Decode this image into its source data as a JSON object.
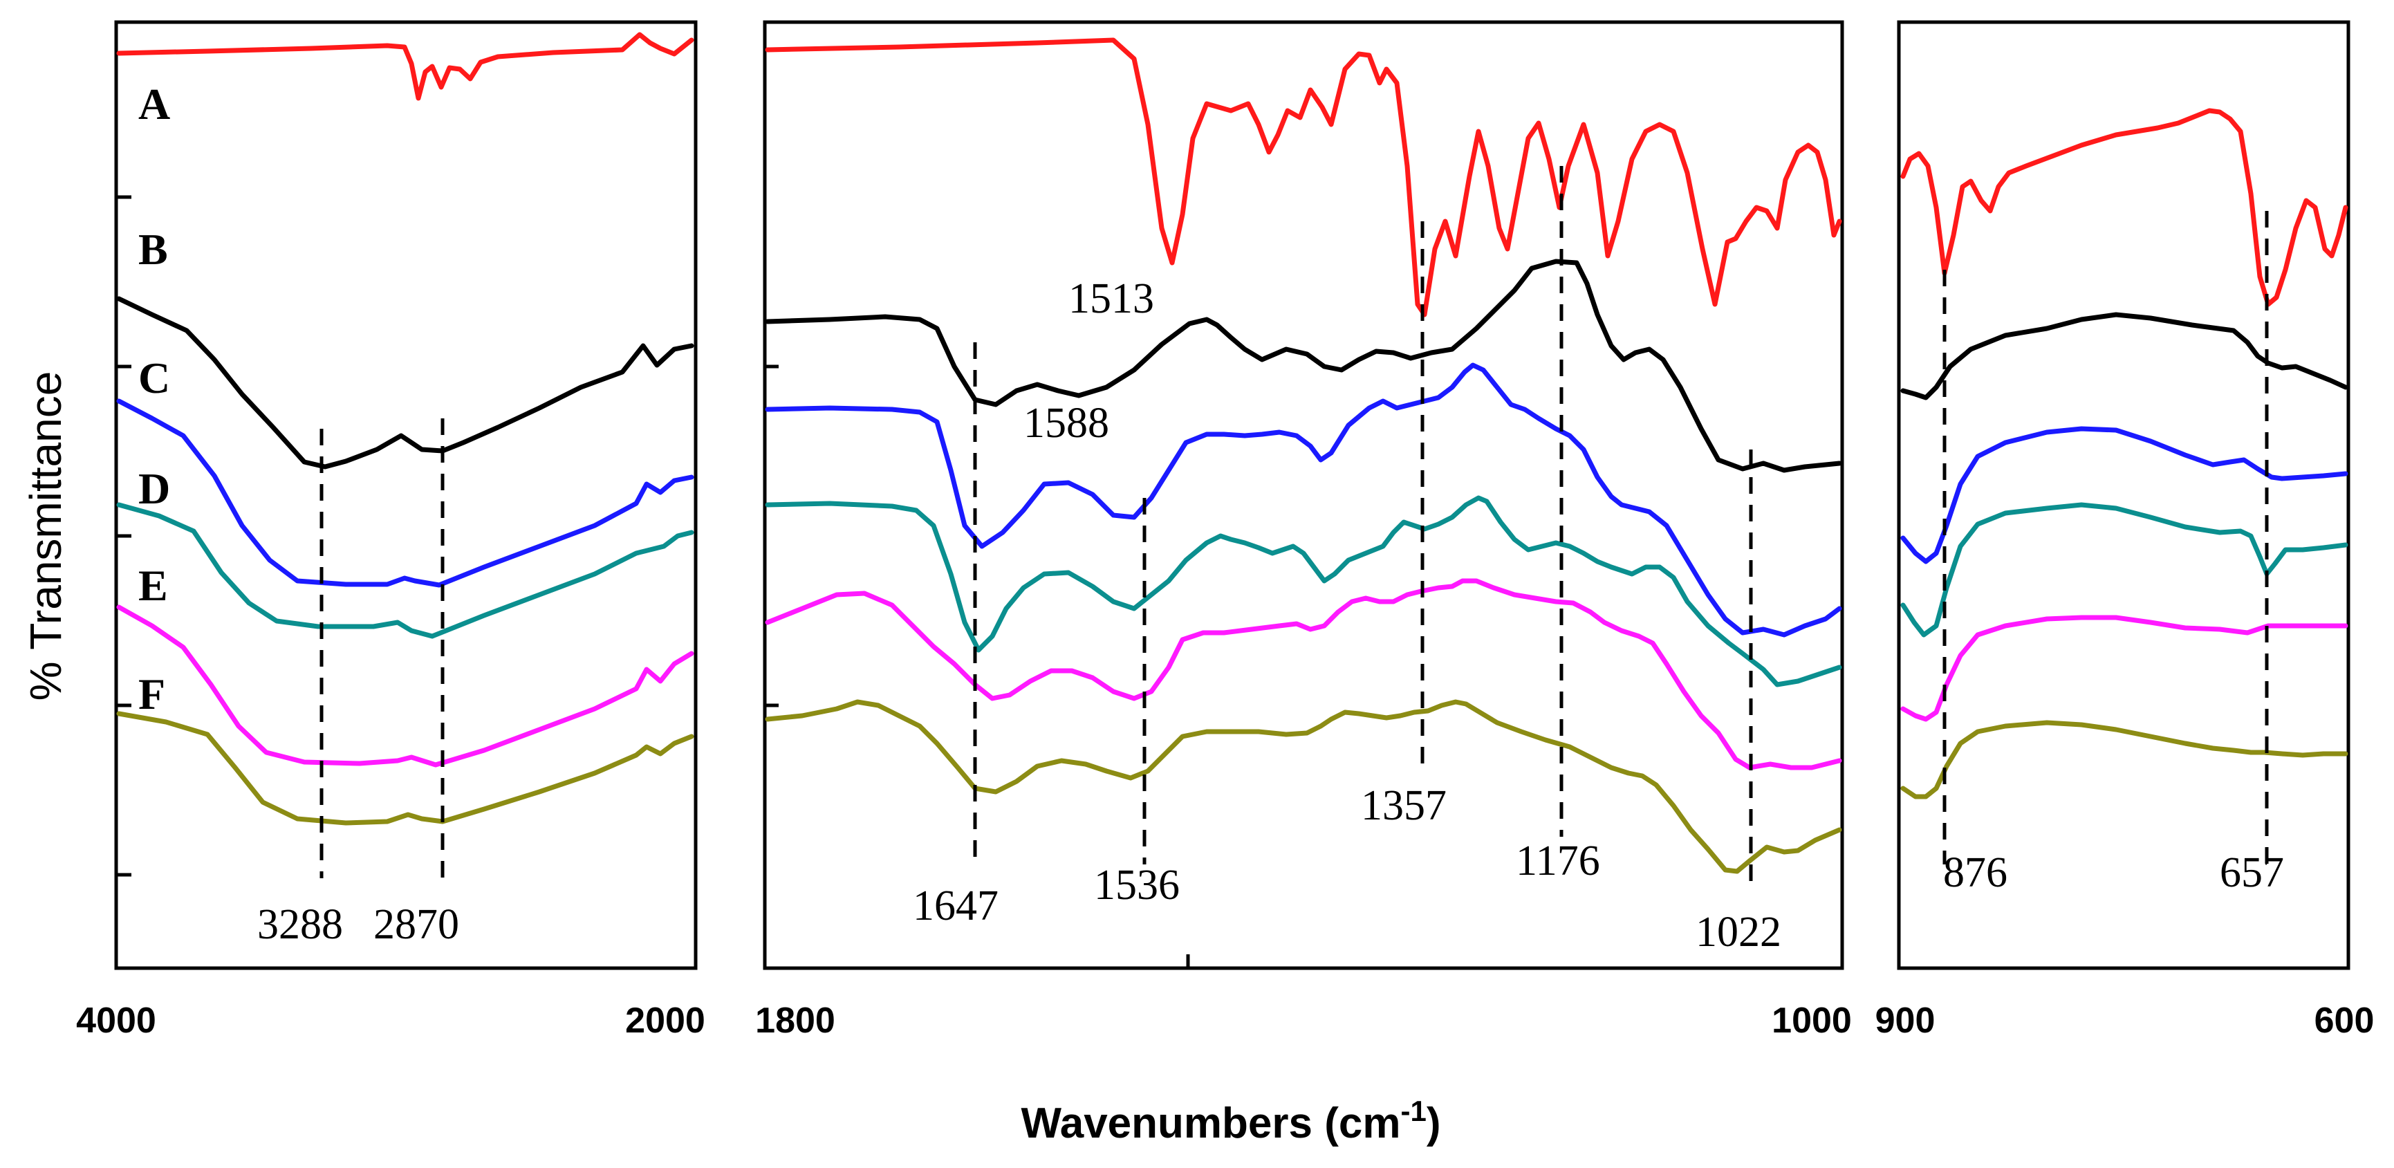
{
  "chart_data": {
    "type": "line",
    "title": "",
    "ylabel": "% Transmittance",
    "xlabel": "Wavenumbers (cm",
    "xlabel_superscript": "-1",
    "xlabel_suffix": ")",
    "panels": [
      {
        "name": "panel-4000-2000",
        "xlim": [
          4000,
          2000
        ],
        "tick_labels": [
          "4000",
          "2000"
        ]
      },
      {
        "name": "panel-1800-1000",
        "xlim": [
          1800,
          1000
        ],
        "tick_labels": [
          "1800",
          "1000"
        ]
      },
      {
        "name": "panel-900-600",
        "xlim": [
          900,
          600
        ],
        "tick_labels": [
          "900",
          "600"
        ]
      }
    ],
    "series": [
      {
        "name": "A",
        "color": "#ff1a1a"
      },
      {
        "name": "B",
        "color": "#000000"
      },
      {
        "name": "C",
        "color": "#1a1aff"
      },
      {
        "name": "D",
        "color": "#0b8f8f"
      },
      {
        "name": "E",
        "color": "#ff1aff"
      },
      {
        "name": "F",
        "color": "#8c8c14"
      }
    ],
    "peak_markers": [
      {
        "label": "3288",
        "wavenumber": 3288
      },
      {
        "label": "2870",
        "wavenumber": 2870
      },
      {
        "label": "1513",
        "wavenumber": 1513
      },
      {
        "label": "1588",
        "wavenumber": 1588
      },
      {
        "label": "1647",
        "wavenumber": 1647
      },
      {
        "label": "1536",
        "wavenumber": 1536
      },
      {
        "label": "1357",
        "wavenumber": 1357
      },
      {
        "label": "1176",
        "wavenumber": 1176
      },
      {
        "label": "1022",
        "wavenumber": 1022
      },
      {
        "label": "876",
        "wavenumber": 876
      },
      {
        "label": "657",
        "wavenumber": 657
      }
    ]
  }
}
